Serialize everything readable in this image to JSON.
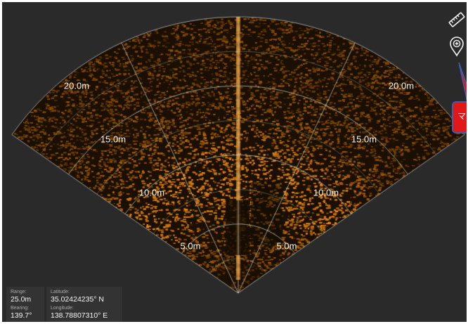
{
  "sonar": {
    "range_rings": [
      {
        "label": "5.0m",
        "meters": 5
      },
      {
        "label": "10.0m",
        "meters": 10
      },
      {
        "label": "15.0m",
        "meters": 15
      },
      {
        "label": "20.0m",
        "meters": 20
      }
    ],
    "max_range_m": 20,
    "colors": {
      "background": "#2a2a2a",
      "echo": "#d08a1a",
      "grid": "#d8d8d8"
    }
  },
  "toolbar": {
    "measure_icon": "ruler-icon",
    "marker_icon": "map-pin-plus-icon"
  },
  "callout": {
    "text": "マ",
    "color": "#e01818"
  },
  "status": {
    "range_caption": "Range:",
    "range_value": "25.0m",
    "bearing_caption": "Bearing:",
    "bearing_value": "139.7°",
    "latitude_caption": "Latitude:",
    "latitude_value": "35.02424235° N",
    "longitude_caption": "Longitude:",
    "longitude_value": "138.78807310° E"
  }
}
